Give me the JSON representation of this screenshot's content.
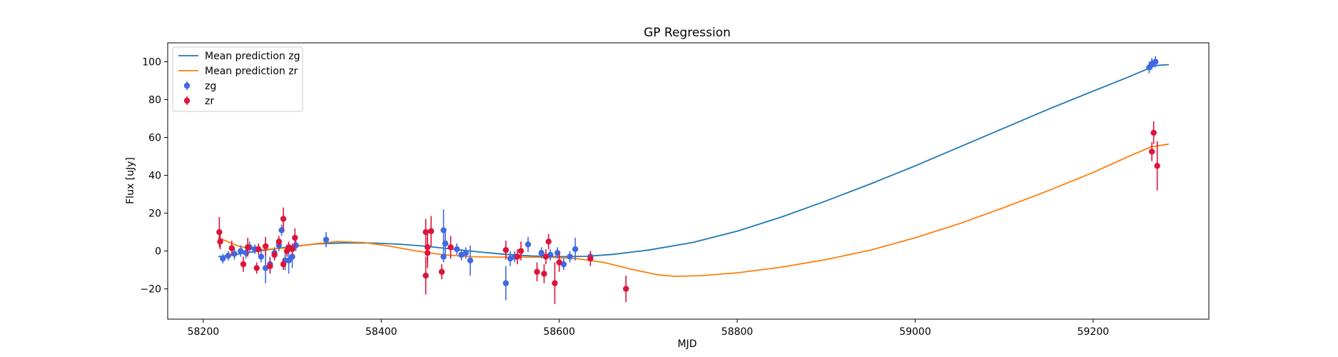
{
  "chart_data": {
    "type": "scatter",
    "title": "GP Regression",
    "xlabel": "MJD",
    "ylabel": "Flux [uJy]",
    "xlim": [
      58160,
      59330
    ],
    "ylim": [
      -36,
      110
    ],
    "xticks": [
      58200,
      58400,
      58600,
      58800,
      59000,
      59200
    ],
    "yticks": [
      -20,
      0,
      20,
      40,
      60,
      80,
      100
    ],
    "grid": false,
    "legend_position": "top-left",
    "colors": {
      "mean_zg": "#1f77b4",
      "mean_zr": "#ff7f0e",
      "zg": "#4169e1",
      "zr": "#dc143c"
    },
    "legend": [
      {
        "label": "Mean prediction zg",
        "kind": "line",
        "color_key": "mean_zg"
      },
      {
        "label": "Mean prediction zr",
        "kind": "line",
        "color_key": "mean_zr"
      },
      {
        "label": "zg",
        "kind": "errorbar",
        "color_key": "zg"
      },
      {
        "label": "zr",
        "kind": "errorbar",
        "color_key": "zr"
      }
    ],
    "series": [
      {
        "name": "Mean prediction zg",
        "type": "line",
        "color_key": "mean_zg",
        "points": [
          [
            58217,
            -3
          ],
          [
            58240,
            -1.5
          ],
          [
            58270,
            0.5
          ],
          [
            58300,
            2.5
          ],
          [
            58330,
            3.8
          ],
          [
            58360,
            4.3
          ],
          [
            58390,
            4.2
          ],
          [
            58420,
            3.6
          ],
          [
            58450,
            2.5
          ],
          [
            58480,
            1.0
          ],
          [
            58510,
            -0.5
          ],
          [
            58540,
            -1.8
          ],
          [
            58570,
            -2.6
          ],
          [
            58600,
            -3.0
          ],
          [
            58630,
            -2.8
          ],
          [
            58660,
            -1.8
          ],
          [
            58700,
            0.5
          ],
          [
            58750,
            4.5
          ],
          [
            58800,
            10.5
          ],
          [
            58850,
            18
          ],
          [
            58900,
            26.5
          ],
          [
            58950,
            35.5
          ],
          [
            59000,
            45
          ],
          [
            59050,
            55
          ],
          [
            59100,
            65
          ],
          [
            59150,
            75
          ],
          [
            59200,
            84.5
          ],
          [
            59240,
            92
          ],
          [
            59270,
            98
          ],
          [
            59285,
            98.5
          ]
        ]
      },
      {
        "name": "Mean prediction zr",
        "type": "line",
        "color_key": "mean_zr",
        "points": [
          [
            58217,
            7
          ],
          [
            58240,
            2.5
          ],
          [
            58260,
            0.5
          ],
          [
            58290,
            1.5
          ],
          [
            58320,
            3.5
          ],
          [
            58350,
            5
          ],
          [
            58380,
            4.5
          ],
          [
            58410,
            2.5
          ],
          [
            58440,
            0
          ],
          [
            58470,
            -2
          ],
          [
            58500,
            -3
          ],
          [
            58530,
            -3.2
          ],
          [
            58560,
            -3.2
          ],
          [
            58590,
            -3.3
          ],
          [
            58620,
            -4
          ],
          [
            58650,
            -6
          ],
          [
            58680,
            -9.5
          ],
          [
            58710,
            -12.5
          ],
          [
            58730,
            -13.4
          ],
          [
            58760,
            -13
          ],
          [
            58800,
            -11.5
          ],
          [
            58850,
            -8.5
          ],
          [
            58900,
            -4.5
          ],
          [
            58950,
            0.5
          ],
          [
            59000,
            7
          ],
          [
            59050,
            14.5
          ],
          [
            59100,
            23
          ],
          [
            59150,
            32
          ],
          [
            59200,
            41.5
          ],
          [
            59240,
            50
          ],
          [
            59265,
            55
          ],
          [
            59285,
            56.5
          ]
        ]
      },
      {
        "name": "zg",
        "type": "errorbar",
        "color_key": "zg",
        "points": [
          [
            58222,
            -4,
            2.5
          ],
          [
            58228,
            -2.5,
            2.5
          ],
          [
            58235,
            -1.5,
            3
          ],
          [
            58242,
            0,
            3
          ],
          [
            58248,
            -1,
            3
          ],
          [
            58252,
            2,
            3
          ],
          [
            58258,
            1,
            2.5
          ],
          [
            58265,
            -3,
            3
          ],
          [
            58270,
            -9,
            8
          ],
          [
            58275,
            -7,
            4
          ],
          [
            58280,
            -1,
            3
          ],
          [
            58285,
            3,
            3
          ],
          [
            58288,
            11,
            3
          ],
          [
            58292,
            -5,
            5
          ],
          [
            58296,
            -5,
            7
          ],
          [
            58300,
            -3,
            6
          ],
          [
            58304,
            3,
            3
          ],
          [
            58338,
            6,
            4
          ],
          [
            58470,
            11,
            11
          ],
          [
            58472,
            4,
            6
          ],
          [
            58470,
            -3,
            3
          ],
          [
            58485,
            1,
            3
          ],
          [
            58490,
            -2,
            3
          ],
          [
            58495,
            -1,
            3
          ],
          [
            58500,
            -5,
            8
          ],
          [
            58540,
            -17,
            9
          ],
          [
            58545,
            -4,
            4
          ],
          [
            58550,
            -3,
            3
          ],
          [
            58565,
            3.5,
            4
          ],
          [
            58580,
            -1,
            3
          ],
          [
            58590,
            -2,
            3
          ],
          [
            58598,
            -1,
            3
          ],
          [
            58605,
            -7,
            3
          ],
          [
            58612,
            -3,
            3
          ],
          [
            58618,
            1,
            6
          ],
          [
            58635,
            -3,
            3
          ],
          [
            59263,
            97,
            3
          ],
          [
            59266,
            99,
            3
          ],
          [
            59270,
            100,
            3
          ]
        ]
      },
      {
        "name": "zr",
        "type": "errorbar",
        "color_key": "zr",
        "points": [
          [
            58218,
            10,
            8
          ],
          [
            58219,
            5,
            4
          ],
          [
            58232,
            1.5,
            4
          ],
          [
            58245,
            -7,
            4
          ],
          [
            58250,
            2,
            5
          ],
          [
            58260,
            -9,
            3
          ],
          [
            58262,
            1,
            3
          ],
          [
            58270,
            2.5,
            5
          ],
          [
            58275,
            -8,
            4
          ],
          [
            58280,
            -2,
            3
          ],
          [
            58285,
            5,
            3
          ],
          [
            58290,
            -7,
            3
          ],
          [
            58290,
            17,
            6
          ],
          [
            58294,
            0,
            3
          ],
          [
            58296,
            2,
            3
          ],
          [
            58300,
            1,
            3
          ],
          [
            58303,
            7,
            5
          ],
          [
            58450,
            10,
            7
          ],
          [
            58450,
            -13,
            10
          ],
          [
            58452,
            -1,
            8
          ],
          [
            58452,
            2,
            8
          ],
          [
            58456,
            10.5,
            8
          ],
          [
            58468,
            -11,
            4
          ],
          [
            58478,
            2,
            6
          ],
          [
            58540,
            0.5,
            5
          ],
          [
            58553,
            -3,
            4
          ],
          [
            58557,
            0,
            5
          ],
          [
            58575,
            -11,
            5
          ],
          [
            58583,
            -12,
            5
          ],
          [
            58585,
            -3,
            4
          ],
          [
            58588,
            5,
            4
          ],
          [
            58595,
            -17,
            11
          ],
          [
            58600,
            -6,
            5
          ],
          [
            58635,
            -4,
            4
          ],
          [
            58675,
            -20,
            7
          ],
          [
            59266,
            52.5,
            5
          ],
          [
            59268,
            62.5,
            6
          ],
          [
            59272,
            45,
            13
          ]
        ]
      }
    ]
  }
}
